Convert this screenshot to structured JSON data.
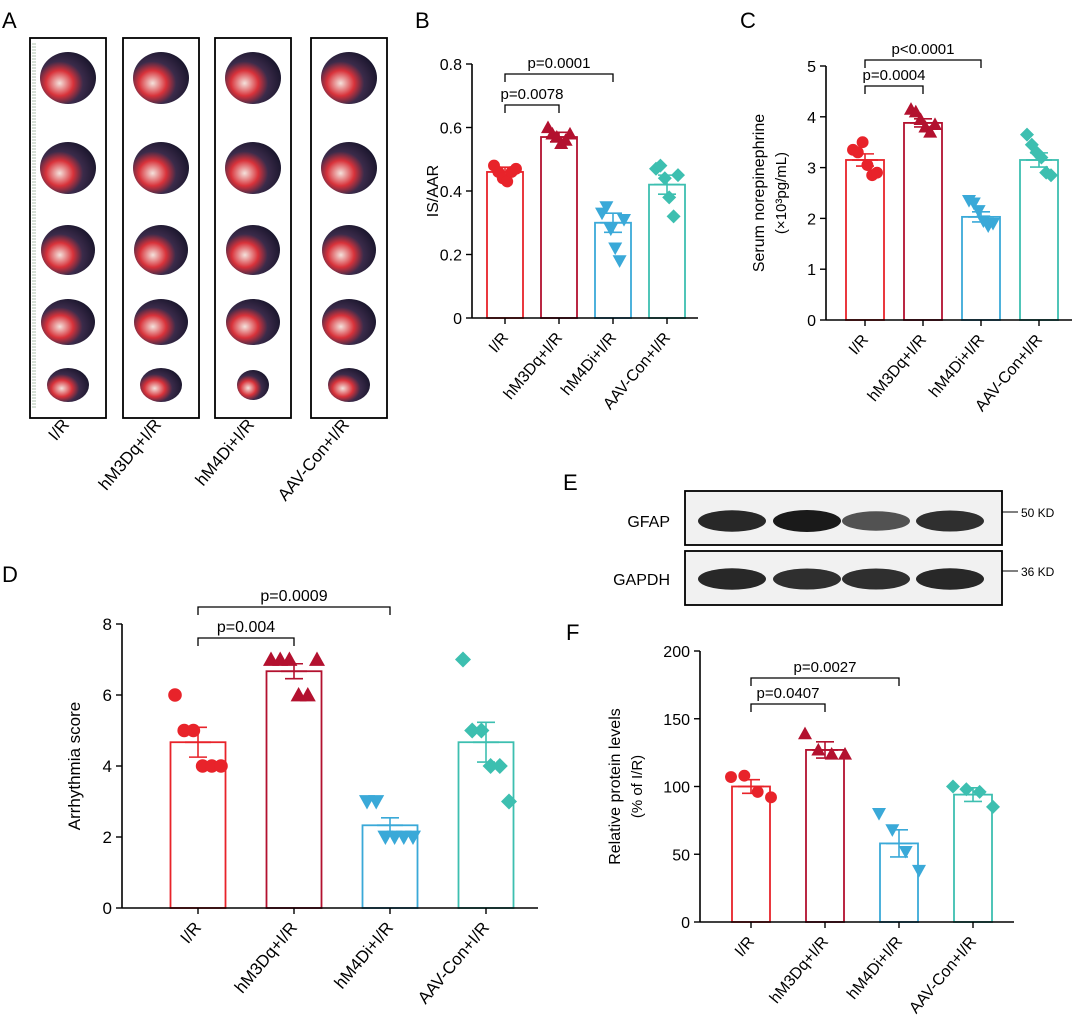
{
  "colors": {
    "ir": "#e8232a",
    "m3": "#b3112f",
    "m4": "#3aa9d8",
    "aav": "#3dbfb0",
    "axis": "#000000",
    "blot_bg": "#f1f1f1",
    "band": "#1a1a1a"
  },
  "panel_a": {
    "letter": "A",
    "groups": [
      "I/R",
      "hM3Dq+I/R",
      "hM4Di+I/R",
      "AAV-Con+I/R"
    ]
  },
  "panel_e": {
    "letter": "E",
    "rows": [
      {
        "label": "GFAP",
        "size": "50 KD",
        "band_intensity": [
          0.9,
          1.0,
          0.6,
          0.85
        ]
      },
      {
        "label": "GAPDH",
        "size": "36 KD",
        "band_intensity": [
          0.9,
          0.85,
          0.85,
          0.9
        ]
      }
    ]
  },
  "chart_data": [
    {
      "panel": "B",
      "type": "bar",
      "categories": [
        "I/R",
        "hM3Dq+I/R",
        "hM4Di+I/R",
        "AAV-Con+I/R"
      ],
      "values": [
        0.46,
        0.57,
        0.3,
        0.42
      ],
      "errors": [
        0.015,
        0.015,
        0.03,
        0.03
      ],
      "points": [
        [
          0.48,
          0.46,
          0.44,
          0.43,
          0.46,
          0.47
        ],
        [
          0.6,
          0.58,
          0.57,
          0.55,
          0.56,
          0.58
        ],
        [
          0.33,
          0.35,
          0.28,
          0.22,
          0.18,
          0.31
        ],
        [
          0.47,
          0.48,
          0.44,
          0.38,
          0.32,
          0.45
        ]
      ],
      "markers": [
        "circle",
        "triangle",
        "triangle-down",
        "diamond"
      ],
      "ylabel": "IS/AAR",
      "ylim": [
        0,
        0.8
      ],
      "yticks": [
        0,
        0.2,
        0.4,
        0.6,
        0.8
      ],
      "ytick_labels": [
        "0",
        "0.2",
        "0.4",
        "0.6",
        "0.8"
      ],
      "comparisons": [
        {
          "from": 0,
          "to": 1,
          "label": "p=0.0078"
        },
        {
          "from": 0,
          "to": 2,
          "label": "p=0.0001"
        }
      ]
    },
    {
      "panel": "C",
      "type": "bar",
      "categories": [
        "I/R",
        "hM3Dq+I/R",
        "hM4Di+I/R",
        "AAV-Con+I/R"
      ],
      "values": [
        3.15,
        3.88,
        2.03,
        3.15
      ],
      "errors": [
        0.12,
        0.08,
        0.1,
        0.14
      ],
      "points": [
        [
          3.35,
          3.3,
          3.5,
          3.05,
          2.85,
          2.9
        ],
        [
          4.15,
          4.1,
          3.95,
          3.8,
          3.7,
          3.85
        ],
        [
          2.35,
          2.3,
          2.15,
          1.95,
          1.85,
          1.9
        ],
        [
          3.65,
          3.45,
          3.3,
          3.2,
          2.9,
          2.85
        ]
      ],
      "markers": [
        "circle",
        "triangle",
        "triangle-down",
        "diamond"
      ],
      "ylabel": "Serum norepinephrine",
      "ylabel2": "(×10³pg/mL)",
      "ylim": [
        0,
        5
      ],
      "yticks": [
        0,
        1,
        2,
        3,
        4,
        5
      ],
      "ytick_labels": [
        "0",
        "1",
        "2",
        "3",
        "4",
        "5"
      ],
      "comparisons": [
        {
          "from": 0,
          "to": 1,
          "label": "p=0.0004"
        },
        {
          "from": 0,
          "to": 2,
          "label": "p<0.0001"
        }
      ]
    },
    {
      "panel": "D",
      "type": "bar",
      "categories": [
        "I/R",
        "hM3Dq+I/R",
        "hM4Di+I/R",
        "AAV-Con+I/R"
      ],
      "values": [
        4.67,
        6.67,
        2.33,
        4.67
      ],
      "errors": [
        0.42,
        0.21,
        0.21,
        0.56
      ],
      "points": [
        [
          6,
          5,
          5,
          4,
          4,
          4
        ],
        [
          7,
          7,
          7,
          6,
          6,
          7
        ],
        [
          3,
          3,
          2,
          2,
          2,
          2
        ],
        [
          7,
          5,
          5,
          4,
          4,
          3
        ]
      ],
      "markers": [
        "circle",
        "triangle",
        "triangle-down",
        "diamond"
      ],
      "ylabel": "Arrhythmia score",
      "ylim": [
        0,
        8
      ],
      "yticks": [
        0,
        2,
        4,
        6,
        8
      ],
      "ytick_labels": [
        "0",
        "2",
        "4",
        "6",
        "8"
      ],
      "comparisons": [
        {
          "from": 0,
          "to": 1,
          "label": "p=0.004"
        },
        {
          "from": 0,
          "to": 2,
          "label": "p=0.0009"
        }
      ]
    },
    {
      "panel": "F",
      "type": "bar",
      "categories": [
        "I/R",
        "hM3Dq+I/R",
        "hM4Di+I/R",
        "AAV-Con+I/R"
      ],
      "values": [
        100,
        127,
        58,
        94
      ],
      "errors": [
        5,
        6,
        10,
        5
      ],
      "points": [
        [
          107,
          108,
          96,
          92
        ],
        [
          139,
          127,
          124,
          124
        ],
        [
          80,
          68,
          52,
          38
        ],
        [
          100,
          98,
          96,
          85
        ]
      ],
      "markers": [
        "circle",
        "triangle",
        "triangle-down",
        "diamond"
      ],
      "ylabel": "Relative protein levels",
      "ylabel2": "(% of I/R)",
      "ylim": [
        0,
        200
      ],
      "yticks": [
        0,
        50,
        100,
        150,
        200
      ],
      "ytick_labels": [
        "0",
        "50",
        "100",
        "150",
        "200"
      ],
      "comparisons": [
        {
          "from": 0,
          "to": 1,
          "label": "p=0.0407"
        },
        {
          "from": 0,
          "to": 2,
          "label": "p=0.0027"
        }
      ]
    }
  ]
}
